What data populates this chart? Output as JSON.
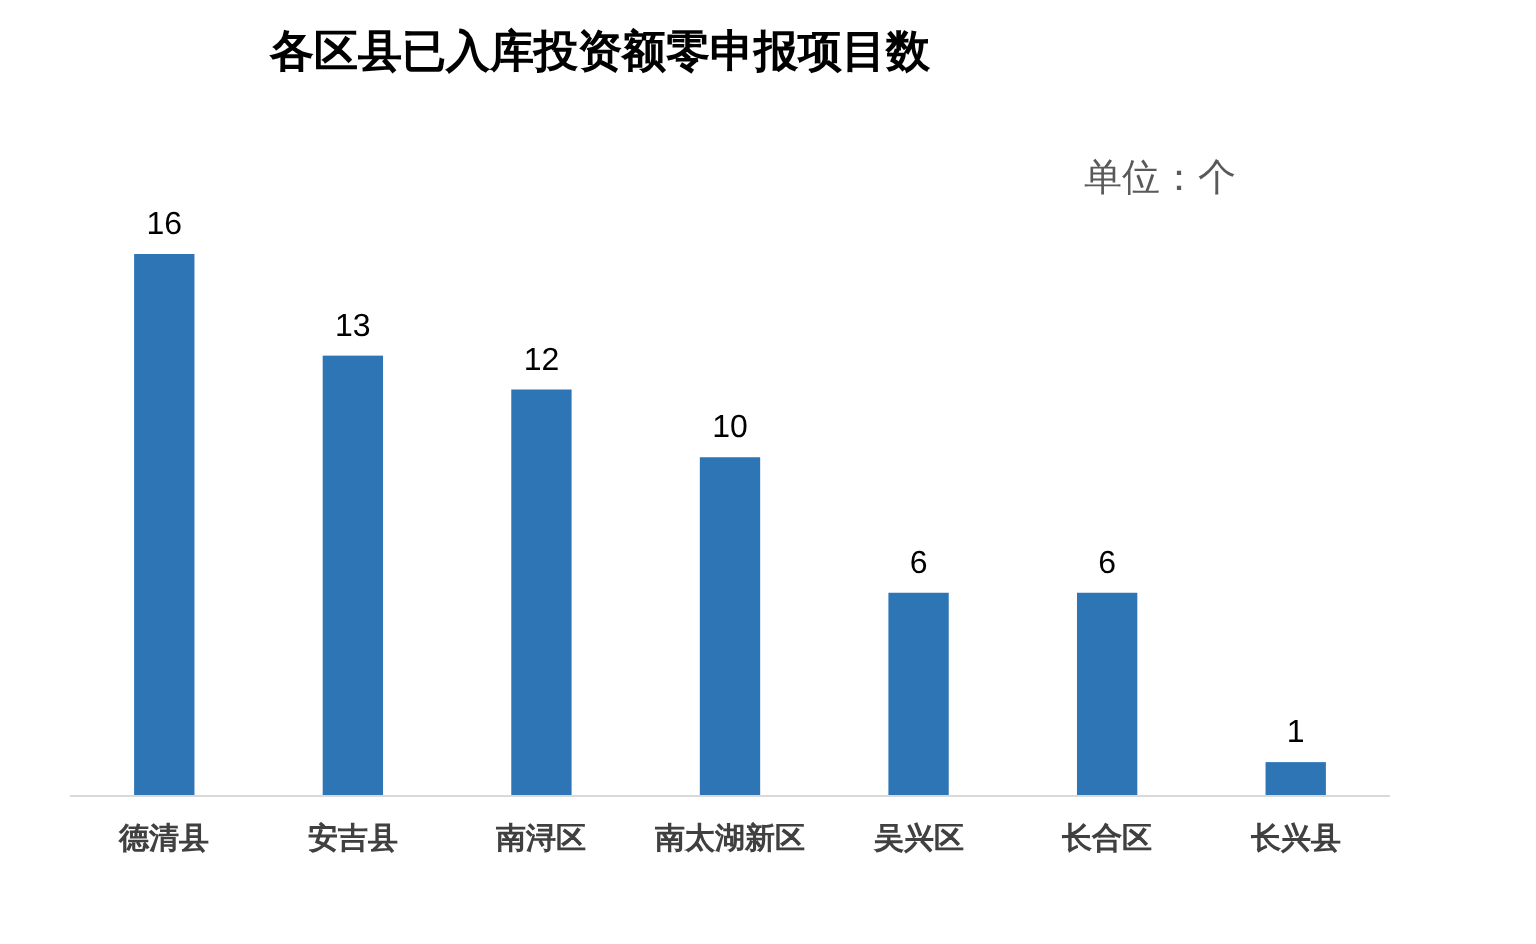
{
  "chart_data": {
    "type": "bar",
    "title": "各区县已入库投资额零申报项目数",
    "annotations": [
      "单位：个"
    ],
    "categories": [
      "德清县",
      "安吉县",
      "南浔区",
      "南太湖新区",
      "吴兴区",
      "长合区",
      "长兴县"
    ],
    "values": [
      16,
      13,
      12,
      10,
      6,
      6,
      1
    ],
    "color": "#2e75b6",
    "data_labels": true
  }
}
